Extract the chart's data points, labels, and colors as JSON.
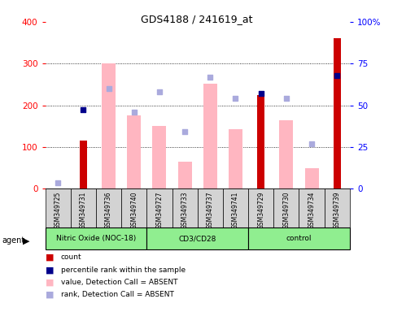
{
  "title": "GDS4188 / 241619_at",
  "samples": [
    "GSM349725",
    "GSM349731",
    "GSM349736",
    "GSM349740",
    "GSM349727",
    "GSM349733",
    "GSM349737",
    "GSM349741",
    "GSM349729",
    "GSM349730",
    "GSM349734",
    "GSM349739"
  ],
  "count_values": [
    null,
    115,
    null,
    null,
    null,
    null,
    null,
    null,
    225,
    null,
    null,
    360
  ],
  "percentile_rank_left": [
    null,
    190,
    null,
    null,
    null,
    null,
    null,
    null,
    228,
    null,
    null,
    272
  ],
  "absent_value": [
    null,
    null,
    300,
    175,
    150,
    65,
    252,
    142,
    null,
    165,
    50,
    null
  ],
  "absent_rank_pct": [
    3.5,
    null,
    60,
    46,
    58,
    34,
    67,
    54,
    null,
    54,
    27,
    null
  ],
  "groups": [
    {
      "label": "Nitric Oxide (NOC-18)",
      "start": 0,
      "end": 4
    },
    {
      "label": "CD3/CD28",
      "start": 4,
      "end": 8
    },
    {
      "label": "control",
      "start": 8,
      "end": 12
    }
  ],
  "ylim_left": [
    0,
    400
  ],
  "ylim_right": [
    0,
    100
  ],
  "yticks_left": [
    0,
    100,
    200,
    300,
    400
  ],
  "yticks_right": [
    0,
    25,
    50,
    75,
    100
  ],
  "yticklabels_right": [
    "0",
    "25",
    "50",
    "75",
    "100%"
  ],
  "count_color": "#cc0000",
  "percentile_color": "#00008B",
  "absent_value_color": "#FFB6C1",
  "absent_rank_color": "#AAAADD",
  "grid_lines": [
    100,
    200,
    300
  ]
}
